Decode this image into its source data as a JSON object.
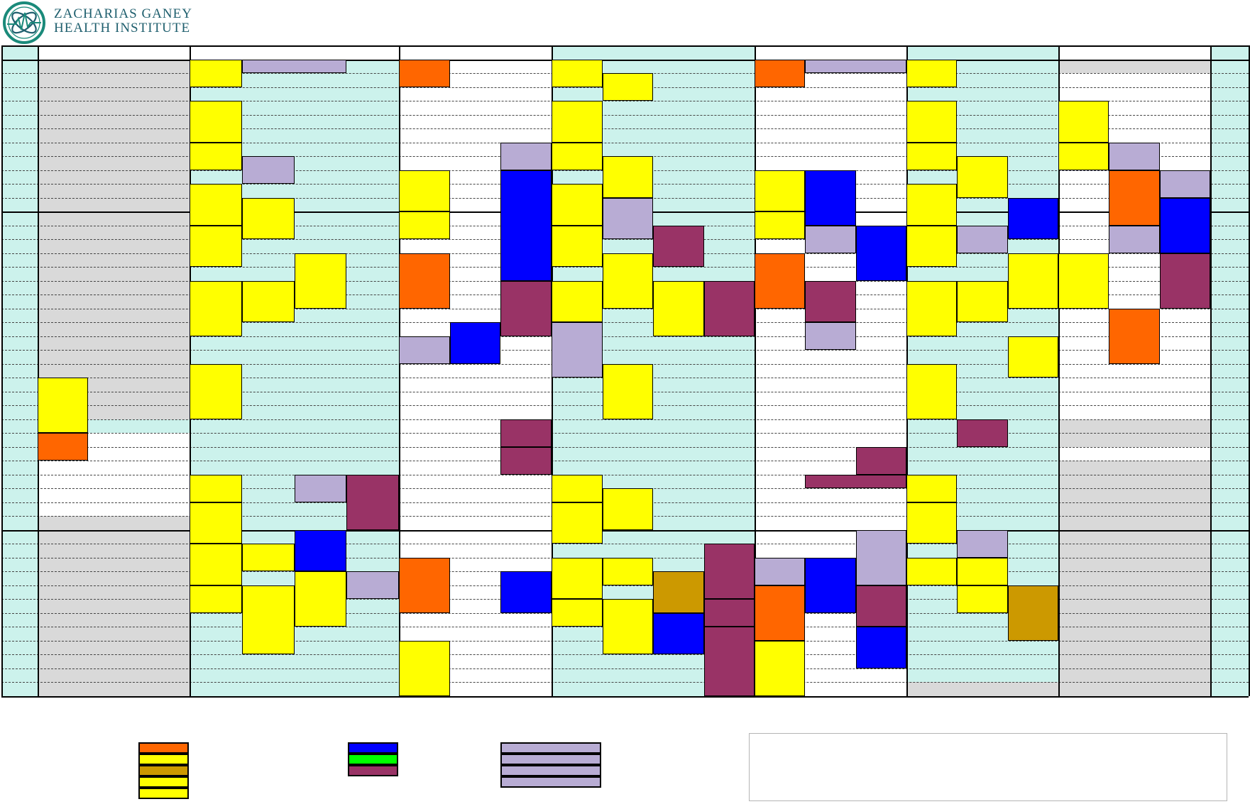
{
  "org": {
    "name_line1": "ZACHARIAS GANEY",
    "name_line2": "HEALTH INSTITUTE",
    "logo": "ecg-globe-logo"
  },
  "colors": {
    "orange": "#ff6600",
    "yellow": "#ffff00",
    "gold": "#cc9900",
    "lavender": "#b8acd4",
    "blue": "#0000ff",
    "green": "#00ff00",
    "plum": "#993366",
    "mint": "#ccf2ec",
    "gray": "#d9d9d9",
    "white": "#ffffff"
  },
  "schedule": {
    "rows": 47,
    "hour_block_rows": [
      1,
      12,
      35,
      47
    ],
    "columns": [
      {
        "id": "time",
        "bg": "mint"
      },
      {
        "id": "c1",
        "bg": "white",
        "sub": 3
      },
      {
        "id": "c2",
        "bg": "mint",
        "sub": 4
      },
      {
        "id": "c3",
        "bg": "white",
        "sub": 3
      },
      {
        "id": "c4",
        "bg": "mint",
        "sub": 4
      },
      {
        "id": "c5",
        "bg": "white",
        "sub": 3
      },
      {
        "id": "c6",
        "bg": "mint",
        "sub": 3
      },
      {
        "id": "c7",
        "bg": "white",
        "sub": 3
      },
      {
        "id": "end",
        "bg": "mint"
      }
    ],
    "shaded_bands": [
      {
        "col": 1,
        "from": 1,
        "to": 27,
        "color": "gray"
      },
      {
        "col": 1,
        "from": 27,
        "to": 28,
        "color": "mint"
      },
      {
        "col": 1,
        "from": 33,
        "to": 34,
        "color": "white"
      },
      {
        "col": 1,
        "from": 34,
        "to": 47,
        "color": "gray"
      },
      {
        "col": 2,
        "from": 0,
        "to": 1,
        "color": "white"
      },
      {
        "col": 2,
        "from": 27,
        "to": 28,
        "color": "mint"
      },
      {
        "col": 3,
        "from": 0,
        "to": 1,
        "color": "white"
      },
      {
        "col": 5,
        "from": 0,
        "to": 1,
        "color": "white"
      },
      {
        "col": 7,
        "from": 1,
        "to": 2,
        "color": "gray"
      },
      {
        "col": 7,
        "from": 27,
        "to": 29,
        "color": "gray"
      },
      {
        "col": 7,
        "from": 30,
        "to": 47,
        "color": "gray"
      },
      {
        "col": 6,
        "from": 46,
        "to": 47,
        "color": "gray"
      },
      {
        "col": 7,
        "from": 46,
        "to": 47,
        "color": "gray"
      }
    ],
    "events": [
      {
        "col": 1,
        "sub": 0,
        "span": 1,
        "from": 24,
        "to": 28,
        "color": "yellow"
      },
      {
        "col": 1,
        "sub": 0,
        "span": 1,
        "from": 28,
        "to": 30,
        "color": "orange"
      },
      {
        "col": 2,
        "sub": 0,
        "span": 1,
        "from": 1,
        "to": 3,
        "color": "yellow"
      },
      {
        "col": 2,
        "sub": 1,
        "span": 2,
        "from": 1,
        "to": 2,
        "color": "lavender"
      },
      {
        "col": 2,
        "sub": 0,
        "span": 1,
        "from": 4,
        "to": 7,
        "color": "yellow"
      },
      {
        "col": 2,
        "sub": 0,
        "span": 1,
        "from": 7,
        "to": 9,
        "color": "yellow"
      },
      {
        "col": 2,
        "sub": 1,
        "span": 1,
        "from": 8,
        "to": 10,
        "color": "lavender"
      },
      {
        "col": 2,
        "sub": 0,
        "span": 1,
        "from": 10,
        "to": 13,
        "color": "yellow"
      },
      {
        "col": 2,
        "sub": 1,
        "span": 1,
        "from": 11,
        "to": 14,
        "color": "yellow"
      },
      {
        "col": 2,
        "sub": 0,
        "span": 1,
        "from": 13,
        "to": 16,
        "color": "yellow"
      },
      {
        "col": 2,
        "sub": 2,
        "span": 1,
        "from": 15,
        "to": 19,
        "color": "yellow"
      },
      {
        "col": 2,
        "sub": 0,
        "span": 1,
        "from": 17,
        "to": 21,
        "color": "yellow"
      },
      {
        "col": 2,
        "sub": 1,
        "span": 1,
        "from": 17,
        "to": 20,
        "color": "yellow"
      },
      {
        "col": 2,
        "sub": 0,
        "span": 1,
        "from": 23,
        "to": 27,
        "color": "yellow"
      },
      {
        "col": 2,
        "sub": 0,
        "span": 1,
        "from": 31,
        "to": 33,
        "color": "yellow"
      },
      {
        "col": 2,
        "sub": 2,
        "span": 1,
        "from": 31,
        "to": 33,
        "color": "lavender"
      },
      {
        "col": 2,
        "sub": 3,
        "span": 1,
        "from": 31,
        "to": 35,
        "color": "plum"
      },
      {
        "col": 2,
        "sub": 0,
        "span": 1,
        "from": 33,
        "to": 36,
        "color": "yellow"
      },
      {
        "col": 2,
        "sub": 2,
        "span": 1,
        "from": 35,
        "to": 38,
        "color": "blue"
      },
      {
        "col": 2,
        "sub": 0,
        "span": 1,
        "from": 36,
        "to": 39,
        "color": "yellow"
      },
      {
        "col": 2,
        "sub": 1,
        "span": 1,
        "from": 36,
        "to": 38,
        "color": "yellow"
      },
      {
        "col": 2,
        "sub": 2,
        "span": 1,
        "from": 38,
        "to": 42,
        "color": "yellow"
      },
      {
        "col": 2,
        "sub": 3,
        "span": 1,
        "from": 38,
        "to": 40,
        "color": "lavender"
      },
      {
        "col": 2,
        "sub": 0,
        "span": 1,
        "from": 39,
        "to": 41,
        "color": "yellow"
      },
      {
        "col": 2,
        "sub": 1,
        "span": 1,
        "from": 39,
        "to": 44,
        "color": "yellow"
      },
      {
        "col": 3,
        "sub": 0,
        "span": 1,
        "from": 1,
        "to": 3,
        "color": "orange"
      },
      {
        "col": 3,
        "sub": 2,
        "span": 1,
        "from": 7,
        "to": 9,
        "color": "lavender"
      },
      {
        "col": 3,
        "sub": 0,
        "span": 1,
        "from": 9,
        "to": 12,
        "color": "yellow"
      },
      {
        "col": 3,
        "sub": 0,
        "span": 1,
        "from": 12,
        "to": 14,
        "color": "yellow"
      },
      {
        "col": 3,
        "sub": 2,
        "span": 1,
        "from": 9,
        "to": 17,
        "color": "blue"
      },
      {
        "col": 3,
        "sub": 0,
        "span": 1,
        "from": 15,
        "to": 19,
        "color": "orange"
      },
      {
        "col": 3,
        "sub": 2,
        "span": 1,
        "from": 17,
        "to": 21,
        "color": "plum"
      },
      {
        "col": 3,
        "sub": 1,
        "span": 1,
        "from": 20,
        "to": 23,
        "color": "blue"
      },
      {
        "col": 3,
        "sub": 0,
        "span": 1,
        "from": 21,
        "to": 23,
        "color": "lavender"
      },
      {
        "col": 3,
        "sub": 2,
        "span": 1,
        "from": 27,
        "to": 29,
        "color": "plum"
      },
      {
        "col": 3,
        "sub": 2,
        "span": 1,
        "from": 29,
        "to": 31,
        "color": "plum"
      },
      {
        "col": 3,
        "sub": 0,
        "span": 1,
        "from": 37,
        "to": 41,
        "color": "orange"
      },
      {
        "col": 3,
        "sub": 2,
        "span": 1,
        "from": 38,
        "to": 41,
        "color": "blue"
      },
      {
        "col": 3,
        "sub": 0,
        "span": 1,
        "from": 43,
        "to": 47,
        "color": "yellow"
      },
      {
        "col": 4,
        "sub": 0,
        "span": 1,
        "from": 1,
        "to": 3,
        "color": "yellow"
      },
      {
        "col": 4,
        "sub": 1,
        "span": 1,
        "from": 2,
        "to": 4,
        "color": "yellow"
      },
      {
        "col": 4,
        "sub": 0,
        "span": 1,
        "from": 4,
        "to": 7,
        "color": "yellow"
      },
      {
        "col": 4,
        "sub": 0,
        "span": 1,
        "from": 7,
        "to": 9,
        "color": "yellow"
      },
      {
        "col": 4,
        "sub": 1,
        "span": 1,
        "from": 8,
        "to": 11,
        "color": "yellow"
      },
      {
        "col": 4,
        "sub": 0,
        "span": 1,
        "from": 10,
        "to": 13,
        "color": "yellow"
      },
      {
        "col": 4,
        "sub": 1,
        "span": 1,
        "from": 11,
        "to": 14,
        "color": "lavender"
      },
      {
        "col": 4,
        "sub": 0,
        "span": 1,
        "from": 13,
        "to": 16,
        "color": "yellow"
      },
      {
        "col": 4,
        "sub": 2,
        "span": 1,
        "from": 13,
        "to": 16,
        "color": "plum"
      },
      {
        "col": 4,
        "sub": 1,
        "span": 1,
        "from": 15,
        "to": 19,
        "color": "yellow"
      },
      {
        "col": 4,
        "sub": 0,
        "span": 1,
        "from": 17,
        "to": 20,
        "color": "yellow"
      },
      {
        "col": 4,
        "sub": 2,
        "span": 1,
        "from": 17,
        "to": 21,
        "color": "yellow"
      },
      {
        "col": 4,
        "sub": 3,
        "span": 1,
        "from": 17,
        "to": 21,
        "color": "plum"
      },
      {
        "col": 4,
        "sub": 0,
        "span": 1,
        "from": 20,
        "to": 24,
        "color": "lavender"
      },
      {
        "col": 4,
        "sub": 1,
        "span": 1,
        "from": 23,
        "to": 27,
        "color": "yellow"
      },
      {
        "col": 4,
        "sub": 0,
        "span": 1,
        "from": 31,
        "to": 33,
        "color": "yellow"
      },
      {
        "col": 4,
        "sub": 0,
        "span": 1,
        "from": 33,
        "to": 36,
        "color": "yellow"
      },
      {
        "col": 4,
        "sub": 1,
        "span": 1,
        "from": 32,
        "to": 35,
        "color": "yellow"
      },
      {
        "col": 4,
        "sub": 3,
        "span": 1,
        "from": 36,
        "to": 40,
        "color": "plum"
      },
      {
        "col": 4,
        "sub": 0,
        "span": 1,
        "from": 37,
        "to": 40,
        "color": "yellow"
      },
      {
        "col": 4,
        "sub": 1,
        "span": 1,
        "from": 37,
        "to": 39,
        "color": "yellow"
      },
      {
        "col": 4,
        "sub": 2,
        "span": 1,
        "from": 38,
        "to": 41,
        "color": "gold"
      },
      {
        "col": 4,
        "sub": 0,
        "span": 1,
        "from": 40,
        "to": 42,
        "color": "yellow"
      },
      {
        "col": 4,
        "sub": 1,
        "span": 1,
        "from": 40,
        "to": 44,
        "color": "yellow"
      },
      {
        "col": 4,
        "sub": 3,
        "span": 1,
        "from": 40,
        "to": 42,
        "color": "plum"
      },
      {
        "col": 4,
        "sub": 2,
        "span": 1,
        "from": 41,
        "to": 44,
        "color": "blue"
      },
      {
        "col": 4,
        "sub": 3,
        "span": 1,
        "from": 42,
        "to": 47,
        "color": "plum"
      },
      {
        "col": 5,
        "sub": 0,
        "span": 1,
        "from": 1,
        "to": 3,
        "color": "orange"
      },
      {
        "col": 5,
        "sub": 1,
        "span": 2,
        "from": 1,
        "to": 2,
        "color": "lavender"
      },
      {
        "col": 5,
        "sub": 0,
        "span": 1,
        "from": 9,
        "to": 12,
        "color": "yellow"
      },
      {
        "col": 5,
        "sub": 1,
        "span": 1,
        "from": 9,
        "to": 13,
        "color": "blue"
      },
      {
        "col": 5,
        "sub": 0,
        "span": 1,
        "from": 12,
        "to": 14,
        "color": "yellow"
      },
      {
        "col": 5,
        "sub": 1,
        "span": 1,
        "from": 13,
        "to": 15,
        "color": "lavender"
      },
      {
        "col": 5,
        "sub": 2,
        "span": 1,
        "from": 13,
        "to": 17,
        "color": "blue"
      },
      {
        "col": 5,
        "sub": 0,
        "span": 1,
        "from": 15,
        "to": 19,
        "color": "orange"
      },
      {
        "col": 5,
        "sub": 1,
        "span": 1,
        "from": 17,
        "to": 20,
        "color": "plum"
      },
      {
        "col": 5,
        "sub": 1,
        "span": 1,
        "from": 20,
        "to": 22,
        "color": "lavender"
      },
      {
        "col": 5,
        "sub": 2,
        "span": 1,
        "from": 29,
        "to": 31,
        "color": "plum"
      },
      {
        "col": 5,
        "sub": 1,
        "span": 2,
        "from": 31,
        "to": 32,
        "color": "plum"
      },
      {
        "col": 5,
        "sub": 2,
        "span": 1,
        "from": 35,
        "to": 39,
        "color": "lavender"
      },
      {
        "col": 5,
        "sub": 0,
        "span": 1,
        "from": 37,
        "to": 39,
        "color": "lavender"
      },
      {
        "col": 5,
        "sub": 1,
        "span": 1,
        "from": 37,
        "to": 41,
        "color": "blue"
      },
      {
        "col": 5,
        "sub": 0,
        "span": 1,
        "from": 39,
        "to": 43,
        "color": "orange"
      },
      {
        "col": 5,
        "sub": 2,
        "span": 1,
        "from": 39,
        "to": 42,
        "color": "plum"
      },
      {
        "col": 5,
        "sub": 2,
        "span": 1,
        "from": 42,
        "to": 45,
        "color": "blue"
      },
      {
        "col": 5,
        "sub": 0,
        "span": 1,
        "from": 43,
        "to": 47,
        "color": "yellow"
      },
      {
        "col": 6,
        "sub": 0,
        "span": 1,
        "from": 1,
        "to": 3,
        "color": "yellow"
      },
      {
        "col": 6,
        "sub": 0,
        "span": 1,
        "from": 4,
        "to": 7,
        "color": "yellow"
      },
      {
        "col": 6,
        "sub": 0,
        "span": 1,
        "from": 7,
        "to": 9,
        "color": "yellow"
      },
      {
        "col": 6,
        "sub": 1,
        "span": 1,
        "from": 8,
        "to": 11,
        "color": "yellow"
      },
      {
        "col": 6,
        "sub": 0,
        "span": 1,
        "from": 10,
        "to": 13,
        "color": "yellow"
      },
      {
        "col": 6,
        "sub": 2,
        "span": 1,
        "from": 11,
        "to": 14,
        "color": "blue"
      },
      {
        "col": 6,
        "sub": 0,
        "span": 1,
        "from": 13,
        "to": 16,
        "color": "yellow"
      },
      {
        "col": 6,
        "sub": 1,
        "span": 1,
        "from": 13,
        "to": 15,
        "color": "lavender"
      },
      {
        "col": 6,
        "sub": 2,
        "span": 1,
        "from": 15,
        "to": 19,
        "color": "yellow"
      },
      {
        "col": 6,
        "sub": 0,
        "span": 1,
        "from": 17,
        "to": 21,
        "color": "yellow"
      },
      {
        "col": 6,
        "sub": 1,
        "span": 1,
        "from": 17,
        "to": 20,
        "color": "yellow"
      },
      {
        "col": 6,
        "sub": 2,
        "span": 1,
        "from": 21,
        "to": 24,
        "color": "yellow"
      },
      {
        "col": 6,
        "sub": 0,
        "span": 1,
        "from": 23,
        "to": 27,
        "color": "yellow"
      },
      {
        "col": 6,
        "sub": 1,
        "span": 1,
        "from": 27,
        "to": 29,
        "color": "plum"
      },
      {
        "col": 6,
        "sub": 0,
        "span": 1,
        "from": 31,
        "to": 33,
        "color": "yellow"
      },
      {
        "col": 6,
        "sub": 0,
        "span": 1,
        "from": 33,
        "to": 36,
        "color": "yellow"
      },
      {
        "col": 6,
        "sub": 1,
        "span": 1,
        "from": 35,
        "to": 37,
        "color": "lavender"
      },
      {
        "col": 6,
        "sub": 0,
        "span": 1,
        "from": 37,
        "to": 39,
        "color": "yellow"
      },
      {
        "col": 6,
        "sub": 1,
        "span": 1,
        "from": 37,
        "to": 39,
        "color": "yellow"
      },
      {
        "col": 6,
        "sub": 1,
        "span": 1,
        "from": 39,
        "to": 41,
        "color": "yellow"
      },
      {
        "col": 6,
        "sub": 2,
        "span": 1,
        "from": 39,
        "to": 43,
        "color": "gold"
      },
      {
        "col": 7,
        "sub": 0,
        "span": 1,
        "from": 4,
        "to": 7,
        "color": "yellow"
      },
      {
        "col": 7,
        "sub": 0,
        "span": 1,
        "from": 7,
        "to": 9,
        "color": "yellow"
      },
      {
        "col": 7,
        "sub": 1,
        "span": 1,
        "from": 7,
        "to": 9,
        "color": "lavender"
      },
      {
        "col": 7,
        "sub": 1,
        "span": 1,
        "from": 9,
        "to": 13,
        "color": "orange"
      },
      {
        "col": 7,
        "sub": 2,
        "span": 1,
        "from": 9,
        "to": 11,
        "color": "lavender"
      },
      {
        "col": 7,
        "sub": 2,
        "span": 1,
        "from": 11,
        "to": 15,
        "color": "blue"
      },
      {
        "col": 7,
        "sub": 1,
        "span": 1,
        "from": 13,
        "to": 15,
        "color": "lavender"
      },
      {
        "col": 7,
        "sub": 0,
        "span": 1,
        "from": 15,
        "to": 19,
        "color": "yellow"
      },
      {
        "col": 7,
        "sub": 2,
        "span": 1,
        "from": 15,
        "to": 19,
        "color": "plum"
      },
      {
        "col": 7,
        "sub": 1,
        "span": 1,
        "from": 19,
        "to": 23,
        "color": "orange"
      }
    ]
  },
  "legend": {
    "group1": [
      {
        "color": "orange"
      },
      {
        "color": "yellow"
      },
      {
        "color": "gold"
      },
      {
        "color": "yellow"
      },
      {
        "color": "yellow"
      }
    ],
    "group2": [
      {
        "color": "blue"
      },
      {
        "color": "green"
      },
      {
        "color": "plum"
      }
    ],
    "group3": [
      {
        "color": "lavender"
      },
      {
        "color": "lavender"
      },
      {
        "color": "lavender"
      },
      {
        "color": "lavender"
      }
    ]
  },
  "notes": {
    "text": ""
  }
}
